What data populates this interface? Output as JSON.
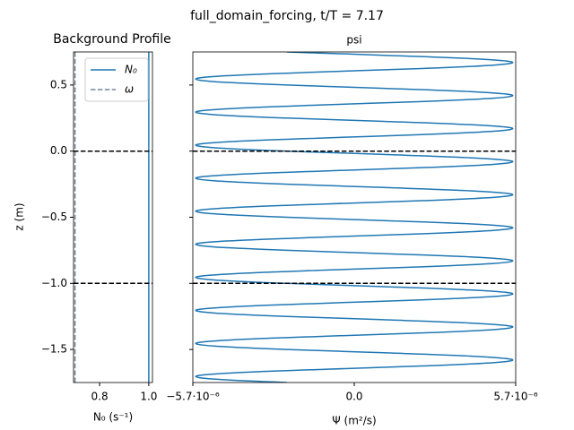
{
  "suptitle": "full_domain_forcing, t/T = 7.17",
  "chart_data": [
    {
      "type": "vline",
      "title": "Background Profile",
      "x_label": "N₀ (s⁻¹)",
      "y_label": "z (m)",
      "xlim": [
        0.694,
        1.015
      ],
      "xticks": [
        0.8,
        {
          "value": 1,
          "label": "1.0"
        }
      ],
      "ylim": [
        -1.75,
        0.75
      ],
      "yticks": [
        {
          "value": -1.5,
          "label": "−1.5"
        },
        {
          "value": -1,
          "label": "−1.0"
        },
        {
          "value": -0.5,
          "label": "−0.5"
        },
        {
          "value": 0,
          "label": "0.0"
        },
        0.5
      ],
      "hlines": [
        0,
        -1
      ],
      "legend": "upper right",
      "series": [
        {
          "name": "N₀",
          "color": "#1f77b4",
          "dash": false,
          "value": 1
        },
        {
          "name": "ω",
          "color": "#778899",
          "dash": true,
          "value": 0.7
        }
      ]
    },
    {
      "type": "line",
      "title": "psi",
      "x_label": "Ψ (m²/s)",
      "xlim": [
        -5.7e-06,
        5.7e-06
      ],
      "xticks": [
        {
          "value": -5.7e-06,
          "label": "−5.7·10⁻⁶"
        },
        {
          "value": 0,
          "label": "0.0"
        },
        {
          "value": 5.7e-06,
          "label": "5.7·10⁻⁶"
        }
      ],
      "ylim": [
        -1.75,
        0.75
      ],
      "hlines": [
        0,
        -1
      ],
      "color": "#1f77b4",
      "z": [
        -1.75,
        -1.725,
        -1.7,
        -1.675,
        -1.65,
        -1.625,
        -1.6,
        -1.575,
        -1.55,
        -1.525,
        -1.5,
        -1.475,
        -1.45,
        -1.425,
        -1.4,
        -1.375,
        -1.35,
        -1.325,
        -1.3,
        -1.275,
        -1.25,
        -1.225,
        -1.2,
        -1.175,
        -1.15,
        -1.125,
        -1.1,
        -1.075,
        -1.05,
        -1.025,
        -1,
        -0.975,
        -0.95,
        -0.925,
        -0.9,
        -0.875,
        -0.85,
        -0.825,
        -0.8,
        -0.775,
        -0.75,
        -0.725,
        -0.7,
        -0.675,
        -0.65,
        -0.625,
        -0.6,
        -0.575,
        -0.55,
        -0.525,
        -0.5,
        -0.475,
        -0.45,
        -0.425,
        -0.4,
        -0.375,
        -0.35,
        -0.325,
        -0.3,
        -0.275,
        -0.25,
        -0.225,
        -0.2,
        -0.175,
        -0.15,
        -0.125,
        -0.1,
        -0.075,
        -0.05,
        -0.025,
        0,
        0.025,
        0.05,
        0.075,
        0.1,
        0.125,
        0.15,
        0.175,
        0.2,
        0.225,
        0.25,
        0.275,
        0.3,
        0.325,
        0.35,
        0.375,
        0.4,
        0.425,
        0.45,
        0.475,
        0.5,
        0.525,
        0.55,
        0.575,
        0.6,
        0.625,
        0.65,
        0.675,
        0.7,
        0.725,
        0.75
      ],
      "values": [
        -2.38e-06,
        -4.91e-06,
        -5.56e-06,
        -4.08e-06,
        -1.05e-06,
        2.38e-06,
        4.91e-06,
        5.56e-06,
        4.08e-06,
        1.05e-06,
        -2.38e-06,
        -4.91e-06,
        -5.56e-06,
        -4.08e-06,
        -1.05e-06,
        2.38e-06,
        4.91e-06,
        5.56e-06,
        4.08e-06,
        1.05e-06,
        -2.38e-06,
        -4.91e-06,
        -5.56e-06,
        -4.08e-06,
        -1.05e-06,
        2.38e-06,
        4.91e-06,
        5.56e-06,
        4.08e-06,
        1.05e-06,
        -2.38e-06,
        -4.91e-06,
        -5.56e-06,
        -4.08e-06,
        -1.05e-06,
        2.38e-06,
        4.91e-06,
        5.56e-06,
        4.08e-06,
        1.05e-06,
        -2.38e-06,
        -4.91e-06,
        -5.56e-06,
        -4.08e-06,
        -1.05e-06,
        2.38e-06,
        4.91e-06,
        5.56e-06,
        4.08e-06,
        1.05e-06,
        -2.38e-06,
        -4.91e-06,
        -5.56e-06,
        -4.08e-06,
        -1.05e-06,
        2.38e-06,
        4.91e-06,
        5.56e-06,
        4.08e-06,
        1.05e-06,
        -2.38e-06,
        -4.91e-06,
        -5.56e-06,
        -4.08e-06,
        -1.05e-06,
        2.38e-06,
        4.91e-06,
        5.56e-06,
        4.08e-06,
        1.05e-06,
        -2.38e-06,
        -4.91e-06,
        -5.56e-06,
        -4.08e-06,
        -1.05e-06,
        2.38e-06,
        4.91e-06,
        5.56e-06,
        4.08e-06,
        1.05e-06,
        -2.38e-06,
        -4.91e-06,
        -5.56e-06,
        -4.08e-06,
        -1.05e-06,
        2.38e-06,
        4.91e-06,
        5.56e-06,
        4.08e-06,
        1.05e-06,
        -2.38e-06,
        -4.91e-06,
        -5.56e-06,
        -4.08e-06,
        -1.05e-06,
        2.38e-06,
        4.91e-06,
        5.56e-06,
        4.08e-06,
        1.05e-06,
        -2.38e-06
      ]
    }
  ]
}
